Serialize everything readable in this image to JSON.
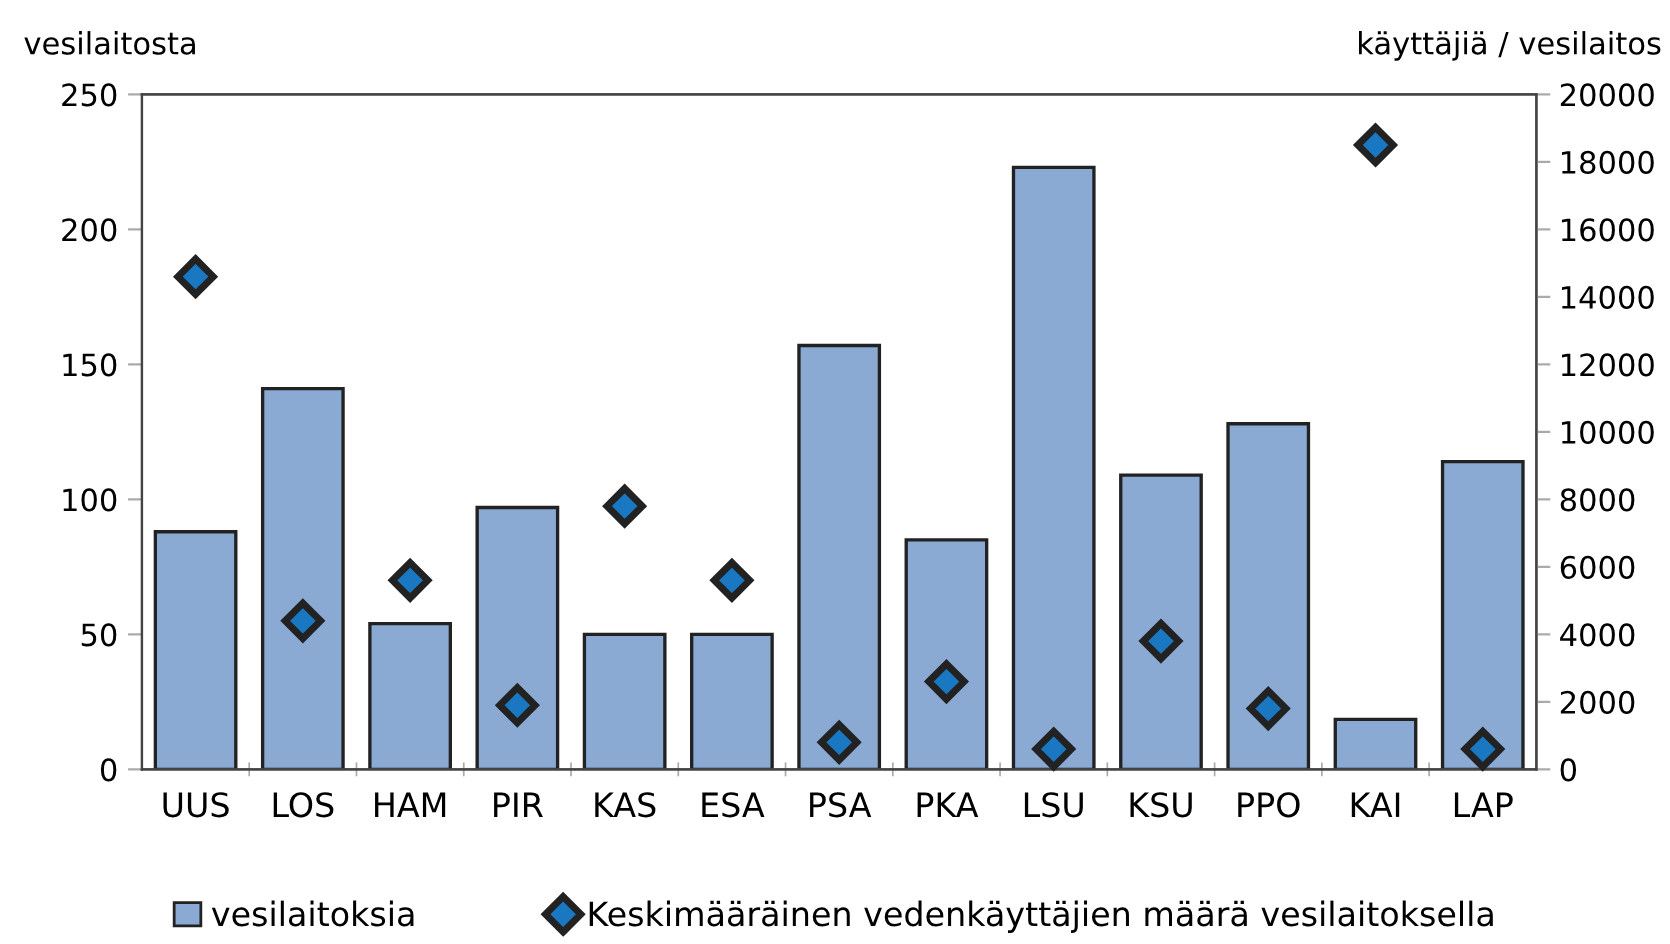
{
  "chart_data": {
    "type": "bar",
    "ylabel": "vesilaitosta",
    "y2label": "käyttäjiä / vesilaitos",
    "categories": [
      "UUS",
      "LOS",
      "HAM",
      "PIR",
      "KAS",
      "ESA",
      "PSA",
      "PKA",
      "LSU",
      "KSU",
      "PPO",
      "KAI",
      "LAP"
    ],
    "series": [
      {
        "name": "vesilaitoksia",
        "color": "#8aaad4",
        "values": [
          88,
          141,
          54,
          97,
          50,
          50,
          157,
          85,
          223,
          109,
          128,
          18.5,
          114
        ]
      },
      {
        "name": "Keskimääräinen vedenkäyttäjien määrä vesilaitoksella",
        "type": "scatter",
        "axis": "y2",
        "color": "#1a78c2",
        "marker": "diamond",
        "values": [
          14600,
          4400,
          5600,
          1900,
          7800,
          5600,
          800,
          2600,
          600,
          3800,
          1800,
          18500,
          600
        ]
      }
    ],
    "ylim": [
      0,
      250
    ],
    "yticks": [
      0,
      50,
      100,
      150,
      200,
      250
    ],
    "y2lim": [
      0,
      20000
    ],
    "y2ticks": [
      0,
      2000,
      4000,
      6000,
      8000,
      10000,
      12000,
      14000,
      16000,
      18000,
      20000
    ],
    "grid": false,
    "legend": "bottom"
  }
}
